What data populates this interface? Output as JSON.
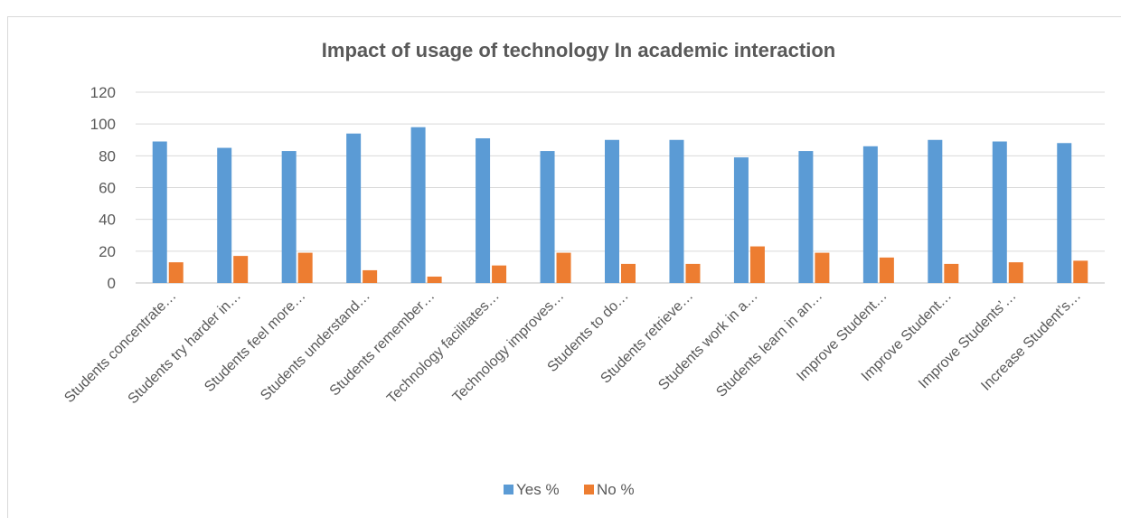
{
  "chart_data": {
    "type": "bar",
    "title": "Impact of usage of technology In academic interaction",
    "xlabel": "",
    "ylabel": "",
    "ylim": [
      0,
      120
    ],
    "yticks": [
      0,
      20,
      40,
      60,
      80,
      100,
      120
    ],
    "grid": true,
    "legend_position": "bottom",
    "categories": [
      "Students concentrate…",
      "Students try harder in…",
      "Students feel more…",
      "Students understand…",
      "Students remember…",
      "Technology  facilitates…",
      "Technology improves…",
      "Students to do…",
      "Students retrieve…",
      "Students  work in a…",
      "Students learn in an…",
      "Improve Student…",
      "Improve Student…",
      "Improve Students’…",
      "Increase Student’s…"
    ],
    "series": [
      {
        "name": "Yes %",
        "color": "#5b9bd5",
        "values": [
          89,
          85,
          83,
          94,
          98,
          91,
          83,
          90,
          90,
          79,
          83,
          86,
          90,
          89,
          88
        ]
      },
      {
        "name": "No %",
        "color": "#ed7d31",
        "values": [
          13,
          17,
          19,
          8,
          4,
          11,
          19,
          12,
          12,
          23,
          19,
          16,
          12,
          13,
          14
        ]
      }
    ]
  }
}
